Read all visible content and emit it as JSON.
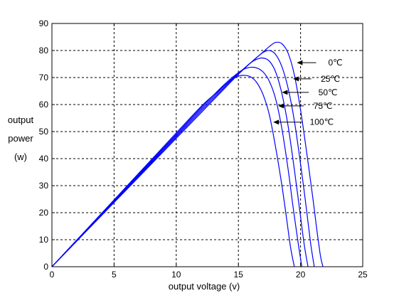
{
  "chart_data": {
    "type": "line",
    "title": "",
    "xlabel": "output voltage (v)",
    "ylabel_lines": [
      "output",
      "power",
      "(w)"
    ],
    "xlim": [
      0,
      25
    ],
    "ylim": [
      0,
      90
    ],
    "x_ticks": [
      "0",
      "5",
      "10",
      "15",
      "20",
      "25"
    ],
    "y_ticks": [
      "0",
      "10",
      "20",
      "30",
      "40",
      "50",
      "60",
      "70",
      "80",
      "90"
    ],
    "grid": true,
    "grid_style": "dashed",
    "series_color": "#0000ff",
    "series": [
      {
        "name": "0℃",
        "x": [
          0,
          2,
          4,
          6,
          8,
          10,
          12,
          14,
          15,
          16,
          17,
          17.5,
          18,
          18.5,
          19,
          19.5,
          20,
          20.5,
          21,
          21.3,
          21.6,
          21.8
        ],
        "y": [
          0,
          9.5,
          19,
          28.5,
          38,
          47.5,
          57,
          66.5,
          71.2,
          75.5,
          79.5,
          81.5,
          83,
          82.5,
          79,
          71,
          58,
          42,
          25,
          14,
          4,
          0
        ]
      },
      {
        "name": "25℃",
        "x": [
          0,
          2,
          4,
          6,
          8,
          10,
          12,
          14,
          15,
          16,
          16.5,
          17,
          17.5,
          18,
          18.5,
          19,
          19.5,
          20,
          20.4,
          20.8,
          21.1
        ],
        "y": [
          0,
          9.6,
          19.2,
          28.8,
          38.4,
          48,
          57.6,
          67,
          71.5,
          75.5,
          77.5,
          79.3,
          80,
          78.5,
          74,
          66,
          54,
          38,
          24,
          9,
          0
        ]
      },
      {
        "name": "50℃",
        "x": [
          0,
          2,
          4,
          6,
          8,
          10,
          12,
          14,
          15,
          15.5,
          16,
          16.5,
          17,
          17.5,
          18,
          18.5,
          19,
          19.5,
          19.9,
          20.3,
          20.6
        ],
        "y": [
          0,
          9.7,
          19.4,
          29.1,
          38.8,
          48.5,
          58.2,
          67.5,
          71.5,
          73.5,
          75.5,
          76.8,
          77.2,
          76,
          72,
          64,
          52,
          36,
          22,
          8,
          0
        ]
      },
      {
        "name": "75℃",
        "x": [
          0,
          2,
          4,
          6,
          8,
          10,
          12,
          14,
          15,
          15.5,
          16,
          16.5,
          17,
          17.5,
          18,
          18.5,
          19,
          19.4,
          19.8,
          20.1
        ],
        "y": [
          0,
          9.8,
          19.6,
          29.4,
          39.2,
          49,
          58.8,
          68,
          71.8,
          73.2,
          73.8,
          73.5,
          72,
          68.5,
          62,
          51,
          36,
          22,
          9,
          0
        ]
      },
      {
        "name": "100℃",
        "x": [
          0,
          2,
          4,
          6,
          8,
          10,
          12,
          13,
          14,
          14.5,
          15,
          15.5,
          16,
          16.5,
          17,
          17.5,
          18,
          18.5,
          18.9,
          19.2,
          19.5
        ],
        "y": [
          0,
          9.9,
          19.8,
          29.7,
          39.6,
          49.5,
          59.3,
          63.5,
          67.5,
          69.3,
          70.5,
          70.8,
          70.2,
          68,
          63.5,
          56,
          44,
          30,
          17,
          7,
          0
        ]
      }
    ],
    "annotations": [
      {
        "label": "0℃",
        "arrow_x": 19.7,
        "arrow_y": 75.5,
        "text_x": 22.8,
        "text_y": 75.5
      },
      {
        "label": "25℃",
        "arrow_x": 19.4,
        "arrow_y": 69.5,
        "text_x": 22.4,
        "text_y": 69.5
      },
      {
        "label": "50℃",
        "arrow_x": 18.5,
        "arrow_y": 64.5,
        "text_x": 22.2,
        "text_y": 64.5
      },
      {
        "label": "75℃",
        "arrow_x": 18.2,
        "arrow_y": 59.5,
        "text_x": 21.8,
        "text_y": 59.5
      },
      {
        "label": "100℃",
        "arrow_x": 17.8,
        "arrow_y": 53.5,
        "text_x": 21.7,
        "text_y": 53.5
      }
    ]
  }
}
